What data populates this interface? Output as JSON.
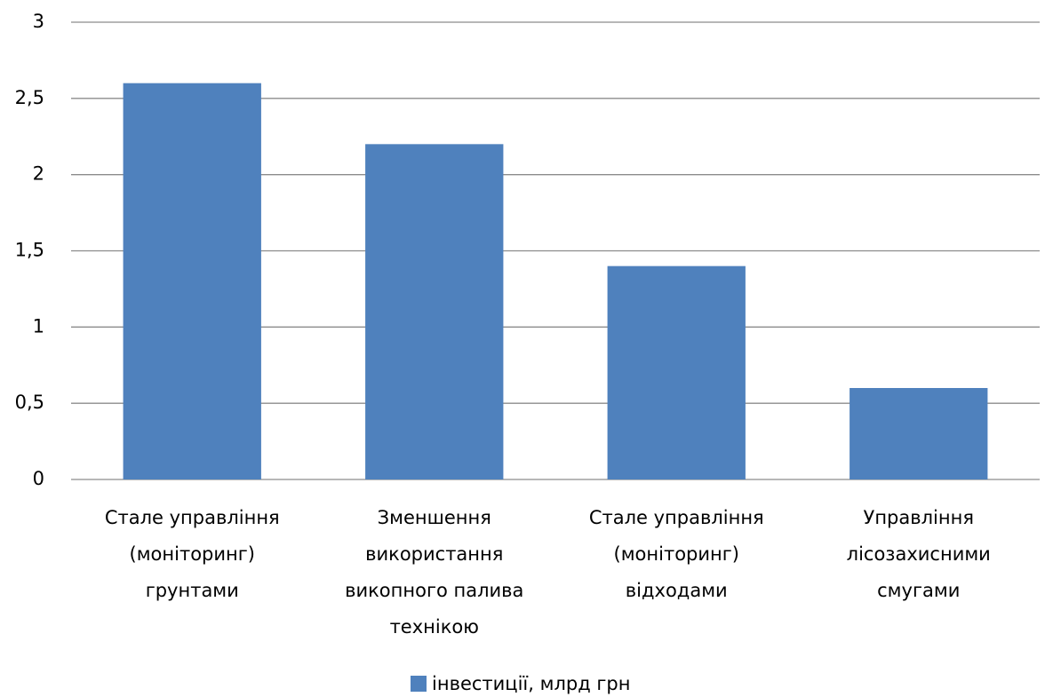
{
  "chart_data": {
    "type": "bar",
    "categories": [
      [
        "Стале управління",
        "(моніторинг)",
        "грунтами"
      ],
      [
        "Зменшення",
        "використання",
        "викопного палива",
        "технікою"
      ],
      [
        "Стале управління",
        "(моніторинг)",
        "відходами"
      ],
      [
        "Управління",
        "лісозахисними",
        "смугами"
      ]
    ],
    "series": [
      {
        "name": "інвестиції, млрд грн",
        "color": "#4f81bd",
        "values": [
          2.6,
          2.2,
          1.4,
          0.6
        ]
      }
    ],
    "ylim": [
      0,
      3
    ],
    "yticks": [
      0,
      {
        "value": 0.5,
        "label": "0,5"
      },
      1,
      {
        "value": 1.5,
        "label": "1,5"
      },
      2,
      {
        "value": 2.5,
        "label": "2,5"
      },
      3
    ],
    "grid": true,
    "legend": "bottom"
  }
}
